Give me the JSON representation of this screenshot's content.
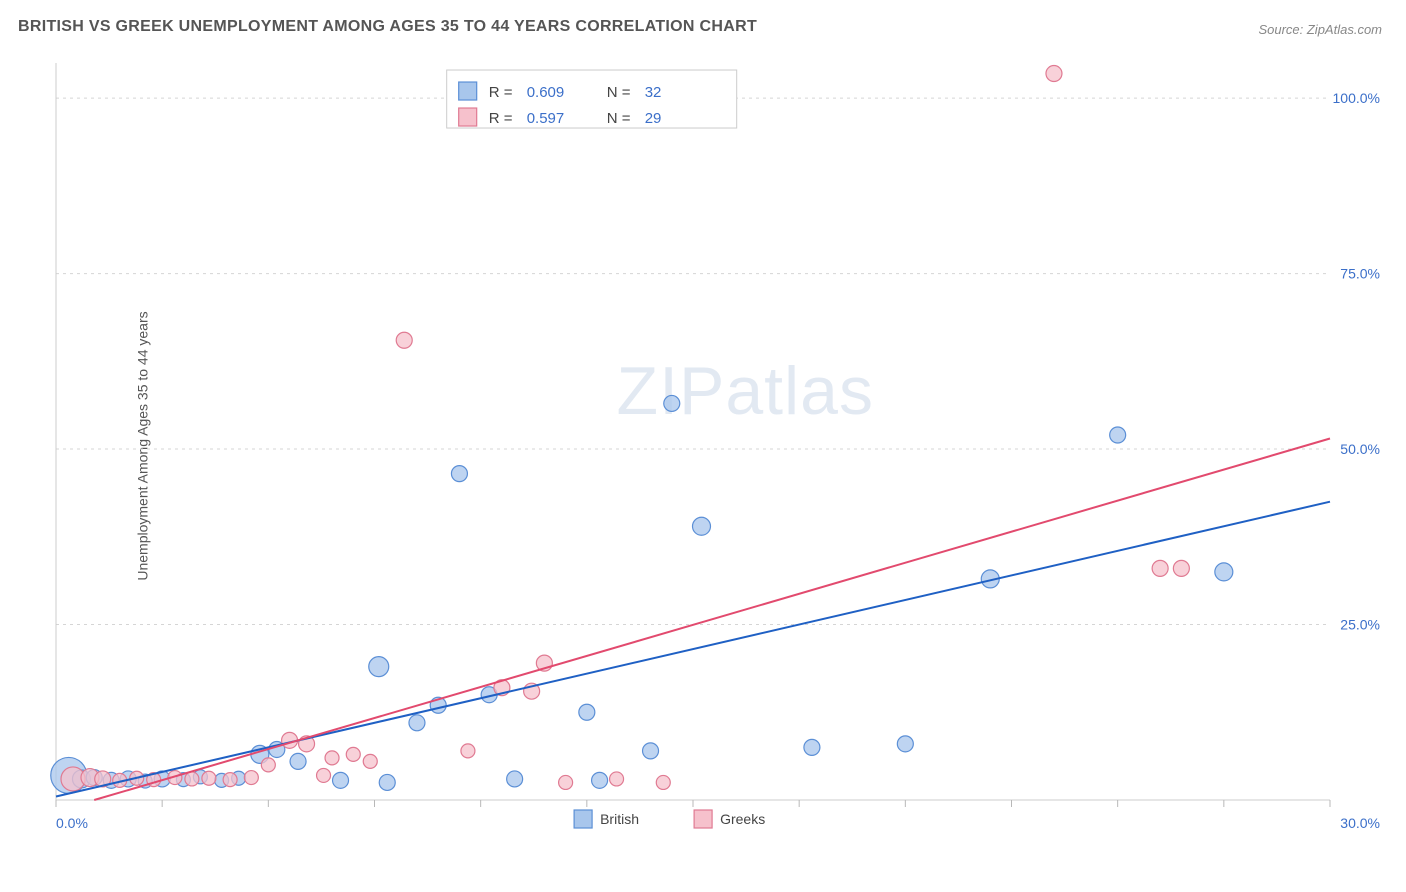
{
  "title": "BRITISH VS GREEK UNEMPLOYMENT AMONG AGES 35 TO 44 YEARS CORRELATION CHART",
  "source": "Source: ZipAtlas.com",
  "ylabel": "Unemployment Among Ages 35 to 44 years",
  "watermark_a": "ZIP",
  "watermark_b": "atlas",
  "chart": {
    "type": "scatter",
    "background_color": "#ffffff",
    "grid_color": "#d5d5d5",
    "axis_color": "#cccccc",
    "xlim": [
      0,
      30
    ],
    "ylim": [
      0,
      105
    ],
    "x_ticks": [
      0,
      2.5,
      5,
      7.5,
      10,
      12.5,
      15,
      17.5,
      20,
      22.5,
      25,
      27.5,
      30
    ],
    "x_tick_labels": {
      "0": "0.0%",
      "30": "30.0%"
    },
    "y_grid": [
      25,
      50,
      75,
      100
    ],
    "y_tick_labels": {
      "25": "25.0%",
      "50": "50.0%",
      "75": "75.0%",
      "100": "100.0%"
    },
    "series": [
      {
        "name": "British",
        "fill": "#a8c6ec",
        "stroke": "#5b8fd6",
        "trend_color": "#1f60c4",
        "r_value": "0.609",
        "n_value": "32",
        "trend": {
          "x1": 0,
          "y1": 0.5,
          "x2": 30,
          "y2": 42.5
        },
        "points": [
          {
            "x": 0.3,
            "y": 3.5,
            "r": 18
          },
          {
            "x": 0.6,
            "y": 3.0,
            "r": 9
          },
          {
            "x": 0.9,
            "y": 3.2,
            "r": 8
          },
          {
            "x": 1.3,
            "y": 2.8,
            "r": 8
          },
          {
            "x": 1.7,
            "y": 3.0,
            "r": 8
          },
          {
            "x": 2.1,
            "y": 2.7,
            "r": 7
          },
          {
            "x": 2.5,
            "y": 3.0,
            "r": 8
          },
          {
            "x": 3.0,
            "y": 2.9,
            "r": 7
          },
          {
            "x": 3.4,
            "y": 3.3,
            "r": 7
          },
          {
            "x": 3.9,
            "y": 2.8,
            "r": 7
          },
          {
            "x": 4.3,
            "y": 3.1,
            "r": 7
          },
          {
            "x": 4.8,
            "y": 6.5,
            "r": 9
          },
          {
            "x": 5.2,
            "y": 7.2,
            "r": 8
          },
          {
            "x": 5.7,
            "y": 5.5,
            "r": 8
          },
          {
            "x": 6.7,
            "y": 2.8,
            "r": 8
          },
          {
            "x": 7.6,
            "y": 19.0,
            "r": 10
          },
          {
            "x": 7.8,
            "y": 2.5,
            "r": 8
          },
          {
            "x": 8.5,
            "y": 11.0,
            "r": 8
          },
          {
            "x": 9.0,
            "y": 13.5,
            "r": 8
          },
          {
            "x": 9.5,
            "y": 46.5,
            "r": 8
          },
          {
            "x": 10.2,
            "y": 15.0,
            "r": 8
          },
          {
            "x": 10.8,
            "y": 3.0,
            "r": 8
          },
          {
            "x": 12.5,
            "y": 12.5,
            "r": 8
          },
          {
            "x": 12.8,
            "y": 2.8,
            "r": 8
          },
          {
            "x": 14.0,
            "y": 7.0,
            "r": 8
          },
          {
            "x": 14.5,
            "y": 56.5,
            "r": 8
          },
          {
            "x": 15.2,
            "y": 39.0,
            "r": 9
          },
          {
            "x": 17.8,
            "y": 7.5,
            "r": 8
          },
          {
            "x": 20.0,
            "y": 8.0,
            "r": 8
          },
          {
            "x": 22.0,
            "y": 31.5,
            "r": 9
          },
          {
            "x": 25.0,
            "y": 52.0,
            "r": 8
          },
          {
            "x": 27.5,
            "y": 32.5,
            "r": 9
          }
        ]
      },
      {
        "name": "Greeks",
        "fill": "#f6c1cc",
        "stroke": "#e07a92",
        "trend_color": "#e24a6e",
        "r_value": "0.597",
        "n_value": "29",
        "trend": {
          "x1": 0.9,
          "y1": 0,
          "x2": 30,
          "y2": 51.5
        },
        "points": [
          {
            "x": 0.4,
            "y": 3.0,
            "r": 12
          },
          {
            "x": 0.8,
            "y": 3.2,
            "r": 9
          },
          {
            "x": 1.1,
            "y": 3.0,
            "r": 8
          },
          {
            "x": 1.5,
            "y": 2.8,
            "r": 7
          },
          {
            "x": 1.9,
            "y": 3.1,
            "r": 7
          },
          {
            "x": 2.3,
            "y": 2.9,
            "r": 7
          },
          {
            "x": 2.8,
            "y": 3.2,
            "r": 7
          },
          {
            "x": 3.2,
            "y": 3.0,
            "r": 7
          },
          {
            "x": 3.6,
            "y": 3.1,
            "r": 7
          },
          {
            "x": 4.1,
            "y": 2.9,
            "r": 7
          },
          {
            "x": 4.6,
            "y": 3.2,
            "r": 7
          },
          {
            "x": 5.0,
            "y": 5.0,
            "r": 7
          },
          {
            "x": 5.5,
            "y": 8.5,
            "r": 8
          },
          {
            "x": 5.9,
            "y": 8.0,
            "r": 8
          },
          {
            "x": 6.3,
            "y": 3.5,
            "r": 7
          },
          {
            "x": 6.5,
            "y": 6.0,
            "r": 7
          },
          {
            "x": 7.0,
            "y": 6.5,
            "r": 7
          },
          {
            "x": 7.4,
            "y": 5.5,
            "r": 7
          },
          {
            "x": 8.2,
            "y": 65.5,
            "r": 8
          },
          {
            "x": 9.7,
            "y": 7.0,
            "r": 7
          },
          {
            "x": 10.5,
            "y": 16.0,
            "r": 8
          },
          {
            "x": 11.2,
            "y": 15.5,
            "r": 8
          },
          {
            "x": 11.5,
            "y": 19.5,
            "r": 8
          },
          {
            "x": 12.0,
            "y": 2.5,
            "r": 7
          },
          {
            "x": 13.2,
            "y": 3.0,
            "r": 7
          },
          {
            "x": 14.3,
            "y": 2.5,
            "r": 7
          },
          {
            "x": 23.5,
            "y": 103.5,
            "r": 8
          },
          {
            "x": 26.0,
            "y": 33.0,
            "r": 8
          },
          {
            "x": 26.5,
            "y": 33.0,
            "r": 8
          }
        ]
      }
    ]
  }
}
